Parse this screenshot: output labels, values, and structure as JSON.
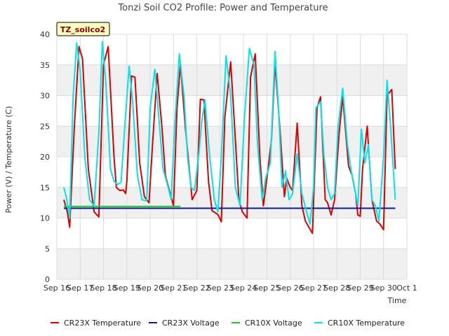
{
  "chart_data": {
    "type": "line",
    "title": "Tonzi Soil CO2 Profile: Power and Temperature",
    "xlabel": "Time",
    "ylabel": "Power (V) / Temperature (C)",
    "badge": "TZ_soilco2",
    "xlim": [
      0,
      15
    ],
    "ylim": [
      0,
      40
    ],
    "yticks": [
      0,
      5,
      10,
      15,
      20,
      25,
      30,
      35,
      40
    ],
    "xticks": [
      {
        "pos": 0,
        "label": "Sep 16"
      },
      {
        "pos": 1,
        "label": "Sep 17"
      },
      {
        "pos": 2,
        "label": "Sep 18"
      },
      {
        "pos": 3,
        "label": "Sep 19"
      },
      {
        "pos": 4,
        "label": "Sep 20"
      },
      {
        "pos": 5,
        "label": "Sep 21"
      },
      {
        "pos": 6,
        "label": "Sep 22"
      },
      {
        "pos": 7,
        "label": "Sep 23"
      },
      {
        "pos": 8,
        "label": "Sep 24"
      },
      {
        "pos": 9,
        "label": "Sep 25"
      },
      {
        "pos": 10,
        "label": "Sep 26"
      },
      {
        "pos": 11,
        "label": "Sep 27"
      },
      {
        "pos": 12,
        "label": "Sep 28"
      },
      {
        "pos": 13,
        "label": "Sep 29"
      },
      {
        "pos": 14,
        "label": "Sep 30"
      },
      {
        "pos": 15,
        "label": "Oct 1"
      }
    ],
    "grid": true,
    "legend_position": "bottom",
    "series": [
      {
        "name": "CR23X Temperature",
        "color": "#dd0000",
        "x": [
          0.3,
          0.45,
          0.55,
          0.75,
          0.95,
          1.1,
          1.35,
          1.6,
          1.8,
          2.0,
          2.2,
          2.45,
          2.55,
          2.7,
          2.85,
          2.95,
          3.0,
          3.2,
          3.35,
          3.55,
          3.75,
          3.95,
          4.1,
          4.3,
          4.5,
          4.65,
          4.8,
          5.0,
          5.15,
          5.3,
          5.5,
          5.65,
          5.8,
          6.0,
          6.15,
          6.3,
          6.5,
          6.65,
          6.9,
          7.05,
          7.2,
          7.45,
          7.6,
          7.8,
          7.95,
          8.15,
          8.3,
          8.5,
          8.7,
          8.85,
          9.05,
          9.2,
          9.35,
          9.55,
          9.75,
          9.85,
          10.0,
          10.1,
          10.3,
          10.5,
          10.65,
          10.8,
          10.95,
          11.15,
          11.3,
          11.5,
          11.6,
          11.75,
          11.9,
          12.1,
          12.25,
          12.5,
          12.65,
          12.8,
          12.9,
          13.0,
          13.1,
          13.3,
          13.5,
          13.7,
          13.85,
          14.0,
          14.15,
          14.35,
          14.5
        ],
        "y": [
          13.0,
          11.0,
          8.5,
          25.0,
          38.0,
          36.0,
          18.0,
          11.0,
          10.2,
          35.0,
          38.0,
          20.0,
          15.0,
          14.5,
          14.6,
          14.0,
          16.0,
          33.2,
          33.0,
          19.0,
          13.5,
          12.5,
          22.0,
          33.6,
          25.0,
          17.0,
          14.8,
          12.0,
          28.0,
          35.2,
          25.0,
          19.0,
          13.0,
          14.5,
          29.4,
          29.3,
          16.0,
          11.2,
          10.6,
          9.4,
          26.5,
          35.5,
          26.0,
          13.0,
          11.0,
          10.0,
          33.0,
          36.8,
          20.0,
          12.0,
          18.0,
          23.0,
          35.3,
          25.0,
          13.5,
          16.5,
          15.0,
          14.5,
          25.5,
          12.0,
          9.5,
          8.5,
          7.5,
          28.0,
          29.8,
          13.0,
          12.5,
          10.5,
          13.0,
          24.0,
          29.8,
          18.5,
          17.0,
          14.0,
          10.5,
          10.3,
          18.0,
          25.0,
          13.0,
          9.5,
          9.0,
          8.1,
          30.0,
          31.0,
          18.0
        ]
      },
      {
        "name": "CR23X Voltage",
        "color": "#0a1aa0",
        "x": [
          0.3,
          14.5
        ],
        "y": [
          11.6,
          11.6
        ]
      },
      {
        "name": "CR10X Voltage",
        "color": "#22cc22",
        "x": [
          0.3,
          5.3
        ],
        "y": [
          11.9,
          11.9
        ]
      },
      {
        "name": "CR10X Temperature",
        "color": "#00e5ee",
        "x": [
          0.3,
          0.4,
          0.55,
          0.7,
          0.85,
          1.0,
          1.2,
          1.4,
          1.6,
          1.8,
          1.95,
          2.1,
          2.3,
          2.45,
          2.6,
          2.75,
          2.95,
          3.1,
          3.25,
          3.45,
          3.65,
          3.85,
          4.0,
          4.2,
          4.4,
          4.55,
          4.7,
          4.9,
          5.05,
          5.25,
          5.45,
          5.6,
          5.75,
          5.9,
          6.1,
          6.2,
          6.35,
          6.55,
          6.75,
          6.9,
          7.05,
          7.25,
          7.45,
          7.65,
          7.85,
          8.05,
          8.25,
          8.45,
          8.6,
          8.8,
          8.95,
          9.15,
          9.35,
          9.5,
          9.65,
          9.8,
          9.95,
          10.1,
          10.3,
          10.5,
          10.7,
          10.85,
          11.0,
          11.1,
          11.3,
          11.45,
          11.6,
          11.75,
          11.9,
          12.05,
          12.25,
          12.45,
          12.6,
          12.75,
          12.9,
          13.05,
          13.2,
          13.35,
          13.5,
          13.65,
          13.8,
          14.0,
          14.15,
          14.3,
          14.5
        ],
        "y": [
          15.0,
          13.5,
          10.0,
          30.0,
          38.6,
          34.0,
          20.0,
          13.0,
          12.0,
          24.0,
          38.8,
          32.0,
          18.0,
          16.0,
          15.5,
          15.8,
          27.0,
          34.8,
          29.0,
          17.0,
          13.0,
          12.8,
          28.0,
          34.3,
          25.0,
          18.0,
          16.0,
          13.0,
          25.0,
          36.8,
          30.0,
          20.0,
          15.0,
          14.5,
          21.0,
          25.5,
          29.3,
          20.0,
          13.0,
          11.0,
          20.0,
          36.5,
          30.0,
          15.0,
          12.0,
          27.0,
          37.7,
          35.0,
          22.0,
          13.0,
          16.5,
          19.0,
          37.2,
          28.0,
          15.0,
          17.7,
          13.0,
          14.0,
          20.5,
          14.0,
          11.0,
          9.0,
          15.0,
          28.0,
          29.0,
          20.0,
          15.0,
          13.0,
          14.0,
          25.0,
          31.2,
          22.0,
          18.0,
          15.0,
          12.0,
          24.5,
          19.0,
          22.0,
          13.0,
          12.0,
          9.5,
          20.0,
          32.5,
          25.0,
          13.0
        ]
      }
    ]
  }
}
